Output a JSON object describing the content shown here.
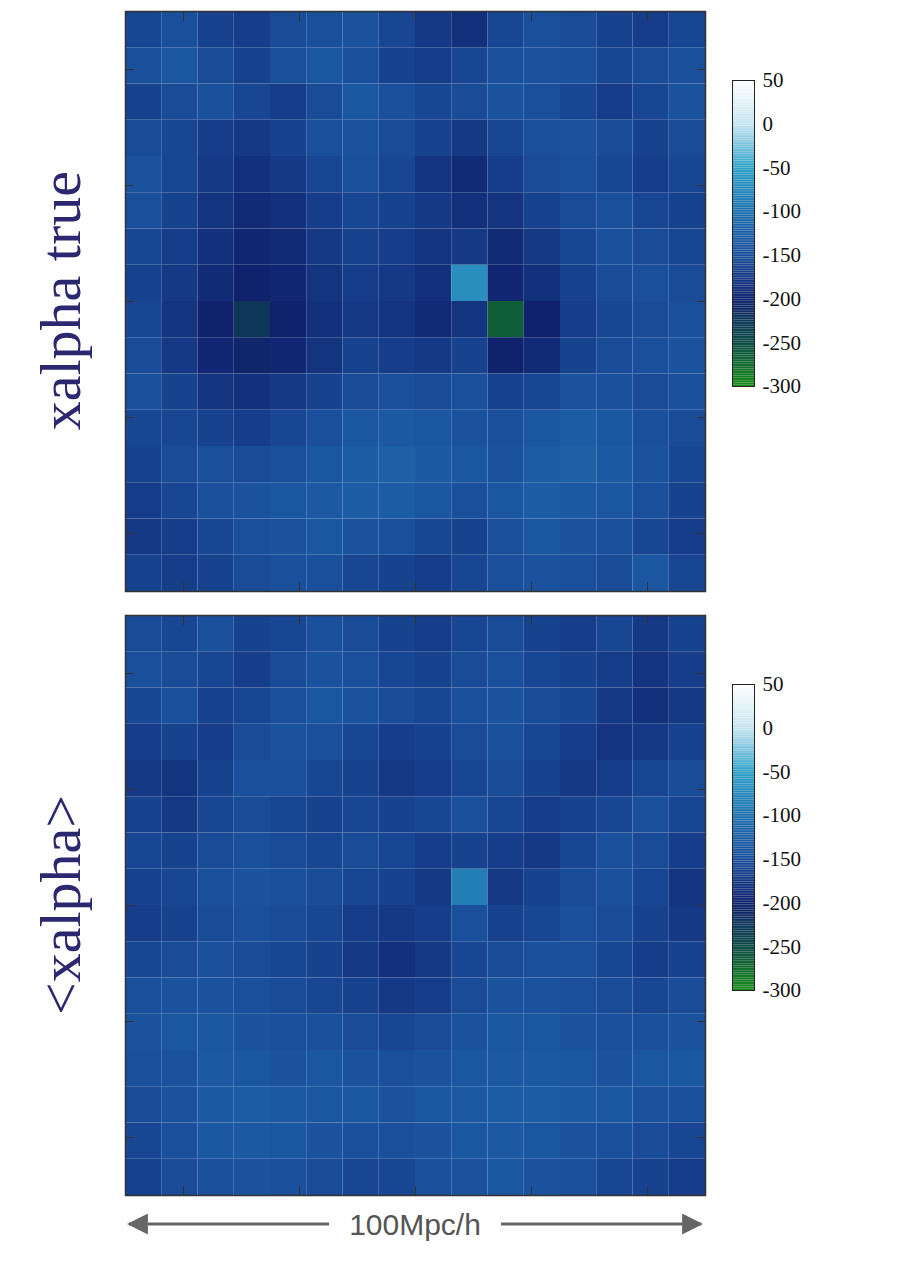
{
  "chart_data": [
    {
      "type": "heatmap",
      "title": "xalpha true",
      "xlim": [
        0,
        100
      ],
      "ylim": [
        0,
        100
      ],
      "xticks": [
        10,
        30,
        50,
        70,
        90
      ],
      "yticks": [
        10,
        30,
        50,
        70,
        90
      ],
      "tick_labels": false,
      "x": [
        3.125,
        9.375,
        15.625,
        21.875,
        28.125,
        34.375,
        40.625,
        46.875,
        53.125,
        59.375,
        65.625,
        71.875,
        78.125,
        84.375,
        90.625,
        96.875
      ],
      "y": [
        96.875,
        90.625,
        84.375,
        78.125,
        71.875,
        65.625,
        59.375,
        53.125,
        46.875,
        40.625,
        34.375,
        28.125,
        21.875,
        15.625,
        9.375,
        3.125
      ],
      "z": [
        [
          -160,
          -150,
          -165,
          -170,
          -155,
          -150,
          -145,
          -160,
          -175,
          -185,
          -160,
          -150,
          -155,
          -165,
          -170,
          -160
        ],
        [
          -150,
          -140,
          -155,
          -165,
          -150,
          -140,
          -150,
          -165,
          -170,
          -160,
          -150,
          -145,
          -150,
          -160,
          -155,
          -150
        ],
        [
          -165,
          -155,
          -150,
          -160,
          -170,
          -155,
          -140,
          -150,
          -160,
          -155,
          -145,
          -150,
          -160,
          -170,
          -160,
          -145
        ],
        [
          -155,
          -160,
          -170,
          -175,
          -165,
          -150,
          -145,
          -155,
          -165,
          -175,
          -160,
          -150,
          -145,
          -155,
          -165,
          -155
        ],
        [
          -145,
          -160,
          -175,
          -185,
          -175,
          -160,
          -150,
          -160,
          -180,
          -190,
          -170,
          -155,
          -150,
          -160,
          -170,
          -160
        ],
        [
          -150,
          -165,
          -180,
          -190,
          -185,
          -170,
          -160,
          -165,
          -175,
          -185,
          -180,
          -165,
          -155,
          -150,
          -160,
          -165
        ],
        [
          -160,
          -170,
          -185,
          -195,
          -190,
          -175,
          -165,
          -170,
          -180,
          -175,
          -190,
          -175,
          -160,
          -150,
          -155,
          -160
        ],
        [
          -165,
          -175,
          -190,
          -200,
          -195,
          -180,
          -170,
          -175,
          -185,
          -70,
          -195,
          -185,
          -165,
          -155,
          -150,
          -155
        ],
        [
          -160,
          -180,
          -200,
          -225,
          -200,
          -185,
          -175,
          -180,
          -190,
          -180,
          -265,
          -200,
          -170,
          -160,
          -155,
          -150
        ],
        [
          -155,
          -175,
          -195,
          -205,
          -195,
          -180,
          -165,
          -170,
          -175,
          -165,
          -200,
          -190,
          -165,
          -155,
          -150,
          -145
        ],
        [
          -150,
          -165,
          -180,
          -185,
          -175,
          -165,
          -155,
          -150,
          -155,
          -150,
          -165,
          -160,
          -145,
          -150,
          -155,
          -150
        ],
        [
          -160,
          -160,
          -165,
          -170,
          -160,
          -150,
          -140,
          -135,
          -140,
          -145,
          -150,
          -140,
          -130,
          -140,
          -150,
          -155
        ],
        [
          -165,
          -155,
          -150,
          -155,
          -150,
          -140,
          -130,
          -125,
          -135,
          -140,
          -145,
          -130,
          -125,
          -135,
          -145,
          -160
        ],
        [
          -170,
          -160,
          -150,
          -145,
          -140,
          -135,
          -130,
          -130,
          -140,
          -150,
          -140,
          -130,
          -135,
          -140,
          -150,
          -165
        ],
        [
          -175,
          -170,
          -160,
          -150,
          -145,
          -140,
          -145,
          -150,
          -160,
          -165,
          -150,
          -140,
          -145,
          -150,
          -160,
          -170
        ],
        [
          -165,
          -170,
          -165,
          -155,
          -150,
          -150,
          -160,
          -165,
          -170,
          -160,
          -150,
          -145,
          -150,
          -155,
          -140,
          -160
        ]
      ],
      "colorbar": {
        "range": [
          -300,
          50
        ],
        "ticks": [
          50,
          0,
          -50,
          -100,
          -150,
          -200,
          -250,
          -300
        ],
        "colors": [
          "#ffffff",
          "#c6e4f0",
          "#2fa2c8",
          "#1f70b0",
          "#1a4f9c",
          "#10226e",
          "#0b4a44",
          "#1b8c1b"
        ]
      }
    },
    {
      "type": "heatmap",
      "title": "<xalpha>",
      "annotation": "100Mpc/h",
      "xlim": [
        0,
        100
      ],
      "ylim": [
        0,
        100
      ],
      "xticks": [
        10,
        30,
        50,
        70,
        90
      ],
      "yticks": [
        10,
        30,
        50,
        70,
        90
      ],
      "tick_labels": false,
      "x": [
        3.125,
        9.375,
        15.625,
        21.875,
        28.125,
        34.375,
        40.625,
        46.875,
        53.125,
        59.375,
        65.625,
        71.875,
        78.125,
        84.375,
        90.625,
        96.875
      ],
      "y": [
        96.875,
        90.625,
        84.375,
        78.125,
        71.875,
        65.625,
        59.375,
        53.125,
        46.875,
        40.625,
        34.375,
        28.125,
        21.875,
        15.625,
        9.375,
        3.125
      ],
      "z": [
        [
          -155,
          -160,
          -150,
          -165,
          -160,
          -150,
          -155,
          -165,
          -170,
          -160,
          -155,
          -165,
          -170,
          -160,
          -175,
          -165
        ],
        [
          -150,
          -155,
          -160,
          -170,
          -155,
          -145,
          -150,
          -160,
          -165,
          -155,
          -150,
          -160,
          -165,
          -170,
          -180,
          -170
        ],
        [
          -160,
          -150,
          -165,
          -160,
          -150,
          -140,
          -145,
          -155,
          -160,
          -150,
          -145,
          -155,
          -160,
          -175,
          -185,
          -175
        ],
        [
          -170,
          -165,
          -170,
          -155,
          -145,
          -150,
          -160,
          -170,
          -165,
          -155,
          -150,
          -160,
          -170,
          -180,
          -175,
          -165
        ],
        [
          -175,
          -180,
          -165,
          -150,
          -150,
          -160,
          -165,
          -175,
          -170,
          -160,
          -155,
          -165,
          -175,
          -170,
          -160,
          -155
        ],
        [
          -165,
          -175,
          -160,
          -155,
          -160,
          -165,
          -160,
          -165,
          -160,
          -150,
          -160,
          -170,
          -165,
          -160,
          -150,
          -160
        ],
        [
          -160,
          -165,
          -155,
          -150,
          -155,
          -160,
          -155,
          -160,
          -170,
          -165,
          -170,
          -175,
          -160,
          -150,
          -155,
          -170
        ],
        [
          -165,
          -160,
          -150,
          -145,
          -150,
          -155,
          -160,
          -165,
          -175,
          -85,
          -175,
          -165,
          -155,
          -150,
          -160,
          -180
        ],
        [
          -170,
          -165,
          -155,
          -150,
          -155,
          -160,
          -170,
          -175,
          -170,
          -150,
          -165,
          -160,
          -150,
          -155,
          -165,
          -175
        ],
        [
          -160,
          -155,
          -150,
          -155,
          -160,
          -165,
          -175,
          -185,
          -175,
          -160,
          -155,
          -150,
          -150,
          -160,
          -170,
          -165
        ],
        [
          -150,
          -145,
          -145,
          -150,
          -155,
          -160,
          -165,
          -175,
          -170,
          -155,
          -145,
          -145,
          -150,
          -155,
          -160,
          -155
        ],
        [
          -145,
          -140,
          -140,
          -145,
          -150,
          -150,
          -155,
          -160,
          -155,
          -145,
          -140,
          -140,
          -145,
          -150,
          -150,
          -145
        ],
        [
          -150,
          -145,
          -135,
          -140,
          -145,
          -140,
          -145,
          -150,
          -145,
          -140,
          -135,
          -135,
          -140,
          -145,
          -140,
          -140
        ],
        [
          -155,
          -145,
          -135,
          -130,
          -135,
          -140,
          -140,
          -145,
          -140,
          -135,
          -130,
          -130,
          -135,
          -140,
          -145,
          -150
        ],
        [
          -160,
          -150,
          -140,
          -135,
          -140,
          -145,
          -150,
          -150,
          -145,
          -140,
          -135,
          -140,
          -145,
          -150,
          -155,
          -160
        ],
        [
          -165,
          -155,
          -150,
          -145,
          -150,
          -155,
          -160,
          -160,
          -150,
          -145,
          -140,
          -145,
          -150,
          -160,
          -165,
          -170
        ]
      ],
      "colorbar": {
        "range": [
          -300,
          50
        ],
        "ticks": [
          50,
          0,
          -50,
          -100,
          -150,
          -200,
          -250,
          -300
        ],
        "colors": [
          "#ffffff",
          "#c6e4f0",
          "#2fa2c8",
          "#1f70b0",
          "#1a4f9c",
          "#10226e",
          "#0b4a44",
          "#1b8c1b"
        ]
      }
    }
  ]
}
